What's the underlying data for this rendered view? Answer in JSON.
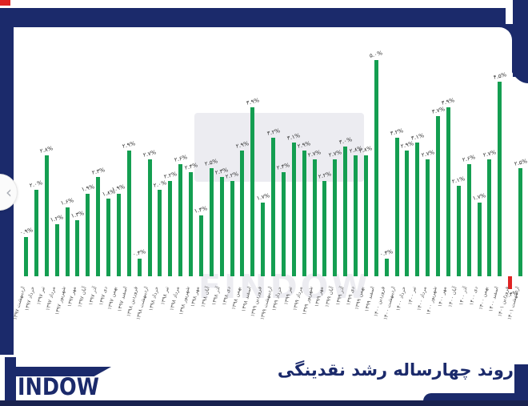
{
  "colors": {
    "navy": "#1b2a6b",
    "bar_green": "#149e51",
    "bar_red": "#e02424"
  },
  "carousel": {
    "prev_icon": "chevron-left"
  },
  "watermark": {
    "text": "FINDOW"
  },
  "logo": {
    "text": "INDOW"
  },
  "footer": {
    "title": "روند چهارساله رشد نقدینگی"
  },
  "chart_data": {
    "type": "bar",
    "title": "روند چهارساله رشد نقدینگی",
    "xlabel": "",
    "ylabel": "",
    "ylim": [
      -0.5,
      5.5
    ],
    "grid": false,
    "legend": false,
    "bar_color": "#149e51",
    "negative_color": "#e02424",
    "categories": [
      "اردیبهشت ۱۳۹۷",
      "خرداد ۱۳۹۷",
      "تیر ۱۳۹۷",
      "مرداد ۱۳۹۷",
      "شهریور ۱۳۹۷",
      "مهر ۱۳۹۷",
      "آبان ۱۳۹۷",
      "آذر ۱۳۹۷",
      "دی ۱۳۹۷",
      "بهمن ۱۳۹۷",
      "اسفند ۱۳۹۷",
      "فروردین ۱۳۹۸",
      "اردیبهشت ۱۳۹۸",
      "خرداد ۱۳۹۸",
      "تیر ۱۳۹۸",
      "مرداد ۱۳۹۸",
      "شهریور ۱۳۹۸",
      "مهر ۱۳۹۸",
      "آبان ۱۳۹۸",
      "آذر ۱۳۹۸",
      "دی ۱۳۹۸",
      "بهمن ۱۳۹۸",
      "اسفند ۱۳۹۸",
      "فروردین ۱۳۹۹",
      "اردیبهشت ۱۳۹۹",
      "خرداد ۱۳۹۹",
      "تیر ۱۳۹۹",
      "مرداد ۱۳۹۹",
      "شهریور ۱۳۹۹",
      "مهر ۱۳۹۹",
      "آبان ۱۳۹۹",
      "آذر ۱۳۹۹",
      "دی ۱۳۹۹",
      "بهمن ۱۳۹۹",
      "اسفند ۱۳۹۹",
      "فروردین ۱۴۰۰",
      "اردیبهشت ۱۴۰۰",
      "خرداد ۱۴۰۰",
      "تیر ۱۴۰۰",
      "مرداد ۱۴۰۰",
      "شهریور ۱۴۰۰",
      "مهر ۱۴۰۰",
      "آبان ۱۴۰۰",
      "آذر ۱۴۰۰",
      "دی ۱۴۰۰",
      "بهمن ۱۴۰۰",
      "اسفند ۱۴۰۰",
      "فروردین ۱۴۰۱",
      "اردیبهشت ۱۴۰۱"
    ],
    "values": [
      0.9,
      2.0,
      2.8,
      1.2,
      1.6,
      1.3,
      1.9,
      2.3,
      1.8,
      1.9,
      2.9,
      0.4,
      2.7,
      2.0,
      2.2,
      2.6,
      2.4,
      1.4,
      2.5,
      2.3,
      2.2,
      2.9,
      3.9,
      1.7,
      3.2,
      2.4,
      3.1,
      2.9,
      2.7,
      2.2,
      2.7,
      3.0,
      2.8,
      2.8,
      5.0,
      0.4,
      3.2,
      2.9,
      3.1,
      2.7,
      3.7,
      3.9,
      2.1,
      2.6,
      1.7,
      2.7,
      4.5,
      -0.3,
      2.5
    ],
    "value_labels": [
      "۰.۹%",
      "۲.۰%",
      "۲.۸%",
      "۱.۲%",
      "۱.۶%",
      "۱.۳%",
      "۱.۹%",
      "۲.۳%",
      "۱.۸%",
      "۱.۹%",
      "۲.۹%",
      "۰.۴%",
      "۲.۷%",
      "۲.۰%",
      "۲.۲%",
      "۲.۶%",
      "۲.۴%",
      "۱.۴%",
      "۲.۵%",
      "۲.۳%",
      "۲.۲%",
      "۲.۹%",
      "۳.۹%",
      "۱.۷%",
      "۳.۲%",
      "۲.۴%",
      "۳.۱%",
      "۲.۹%",
      "۲.۷%",
      "۲.۲%",
      "۲.۷%",
      "۳.۰%",
      "۲.۸%",
      "۲.۸%",
      "۵.۰%",
      "۰.۴%",
      "۳.۲%",
      "۲.۹%",
      "۳.۱%",
      "۲.۷%",
      "۳.۷%",
      "۳.۹%",
      "۲.۱%",
      "۲.۶%",
      "۱.۷%",
      "۲.۷%",
      "۴.۵%",
      "-۰.۳%",
      "۲.۵%"
    ]
  }
}
